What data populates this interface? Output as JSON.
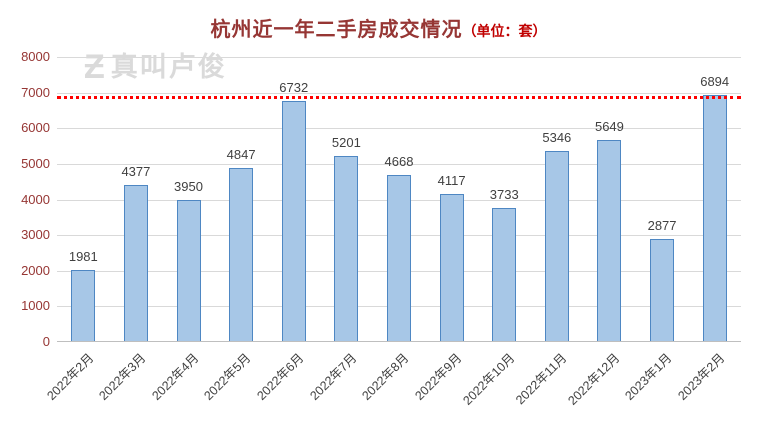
{
  "title": {
    "main": "杭州近一年二手房成交情况",
    "unit": "（单位：套）"
  },
  "watermark": {
    "logo": "Ƶ",
    "text": "真叫卢俊"
  },
  "chart_data": {
    "type": "bar",
    "title": "杭州近一年二手房成交情况（单位：套）",
    "categories": [
      "2022年2月",
      "2022年3月",
      "2022年4月",
      "2022年5月",
      "2022年6月",
      "2022年7月",
      "2022年8月",
      "2022年9月",
      "2022年10月",
      "2022年11月",
      "2022年12月",
      "2023年1月",
      "2023年2月"
    ],
    "values": [
      1981,
      4377,
      3950,
      4847,
      6732,
      5201,
      4668,
      4117,
      3733,
      5346,
      5649,
      2877,
      6894
    ],
    "xlabel": "",
    "ylabel": "",
    "ylim": [
      0,
      8000
    ],
    "ytick_interval": 1000,
    "grid": true,
    "legend": false,
    "reference_line": 6894,
    "colors": {
      "bar_fill": "#A7C7E7",
      "bar_border": "#4E87C3",
      "reference_line": "#FF0000",
      "gridline": "#D9D9D9",
      "axis_line": "#BFBFBF",
      "title": "#963634",
      "title_unit": "#C00000",
      "y_tick": "#963634",
      "x_tick": "#404040",
      "data_label": "#404040",
      "watermark": "#DADADA"
    }
  }
}
